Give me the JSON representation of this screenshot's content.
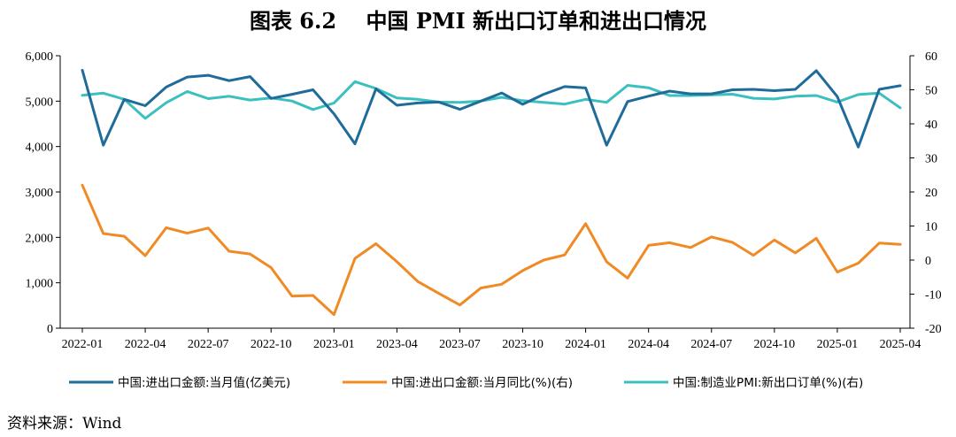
{
  "title": "图表 6.2    中国 PMI 新出口订单和进出口情况",
  "source": "资料来源：Wind",
  "chart_data": {
    "type": "line",
    "x": [
      "2022-01",
      "2022-02",
      "2022-03",
      "2022-04",
      "2022-05",
      "2022-06",
      "2022-07",
      "2022-08",
      "2022-09",
      "2022-10",
      "2022-11",
      "2022-12",
      "2023-01",
      "2023-02",
      "2023-03",
      "2023-04",
      "2023-05",
      "2023-06",
      "2023-07",
      "2023-08",
      "2023-09",
      "2023-10",
      "2023-11",
      "2023-12",
      "2024-01",
      "2024-02",
      "2024-03",
      "2024-04",
      "2024-05",
      "2024-06",
      "2024-07",
      "2024-08",
      "2024-09",
      "2024-10",
      "2024-11",
      "2024-12",
      "2025-01",
      "2025-02",
      "2025-03",
      "2025-04"
    ],
    "x_tick_labels": [
      "2022-01",
      "2022-04",
      "2022-07",
      "2022-10",
      "2023-01",
      "2023-04",
      "2023-07",
      "2023-10",
      "2024-01",
      "2024-04",
      "2024-07",
      "2024-10",
      "2025-01",
      "2025-04"
    ],
    "y_left": {
      "ylim": [
        0,
        6000
      ],
      "ticks": [
        "0",
        "1,000",
        "2,000",
        "3,000",
        "4,000",
        "5,000",
        "6,000"
      ]
    },
    "y_right": {
      "ylim": [
        -20,
        60
      ],
      "ticks": [
        "-20",
        "-10",
        "0",
        "10",
        "20",
        "30",
        "40",
        "50",
        "60"
      ]
    },
    "grid": false,
    "legend_position": "bottom",
    "series": [
      {
        "name": "中国:进出口金额:当月值(亿美元)",
        "axis": "left",
        "color": "#1f6b9a",
        "values": [
          5680,
          4030,
          5040,
          4900,
          5310,
          5530,
          5570,
          5450,
          5540,
          5060,
          5150,
          5250,
          4720,
          4060,
          5270,
          4910,
          4960,
          4980,
          4820,
          5000,
          5180,
          4930,
          5150,
          5320,
          5290,
          4030,
          4990,
          5110,
          5220,
          5160,
          5160,
          5250,
          5260,
          5230,
          5260,
          5670,
          5100,
          3990,
          5260,
          5340
        ]
      },
      {
        "name": "中国:进出口金额:当月同比(%)(右)",
        "axis": "right",
        "color": "#f08a24",
        "values": [
          22,
          7.8,
          7,
          1.3,
          9.5,
          7.9,
          9.4,
          2.6,
          1.8,
          -2.2,
          -10.6,
          -10.4,
          -16,
          0.5,
          4.8,
          -0.5,
          -6.3,
          -9.8,
          -13.2,
          -8.2,
          -7.1,
          -3.1,
          0,
          1.5,
          10.7,
          -0.5,
          -5.3,
          4.3,
          5.1,
          3.7,
          6.8,
          5.2,
          1.4,
          5.9,
          2.1,
          6.4,
          -3.5,
          -0.9,
          5,
          4.6
        ]
      },
      {
        "name": "中国:制造业PMI:新出口订单(%)(右)",
        "axis": "right",
        "color": "#3bbfbf",
        "values": [
          48.4,
          49.0,
          47.2,
          41.6,
          46.2,
          49.5,
          47.4,
          48.1,
          47.0,
          47.6,
          46.7,
          44.2,
          46.1,
          52.4,
          50.4,
          47.6,
          47.2,
          46.4,
          46.3,
          46.7,
          47.8,
          46.8,
          46.3,
          45.8,
          47.2,
          46.3,
          51.3,
          50.6,
          48.3,
          48.3,
          48.5,
          48.7,
          47.5,
          47.3,
          48.1,
          48.3,
          46.4,
          48.6,
          49.0,
          44.7
        ]
      }
    ]
  }
}
